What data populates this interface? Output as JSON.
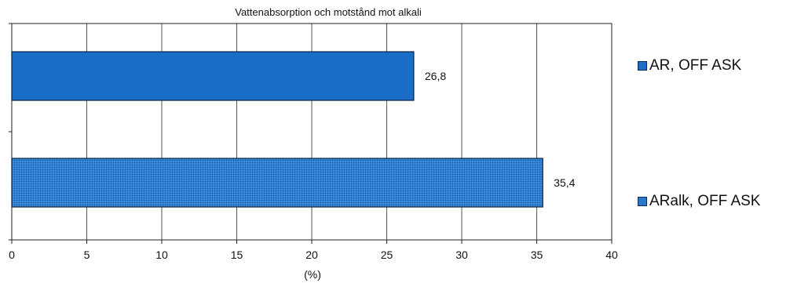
{
  "chart_data": {
    "type": "bar",
    "orientation": "horizontal",
    "title": "Vattenabsorption  och motstånd  mot  alkali",
    "xlabel": "(%)",
    "ylabel": "",
    "xlim": [
      0,
      40
    ],
    "x_ticks": [
      "0",
      "5",
      "10",
      "15",
      "20",
      "25",
      "30",
      "35",
      "40"
    ],
    "grid": true,
    "legend_position": "right",
    "series": [
      {
        "name": "AR, OFF ASK",
        "value": 26.8,
        "value_label": "26,8",
        "color": "#1a6ec8",
        "pattern": "solid"
      },
      {
        "name": "ARalk, OFF ASK",
        "value": 35.4,
        "value_label": "35,4",
        "color": "#2a78cc",
        "pattern": "dotted"
      }
    ]
  }
}
